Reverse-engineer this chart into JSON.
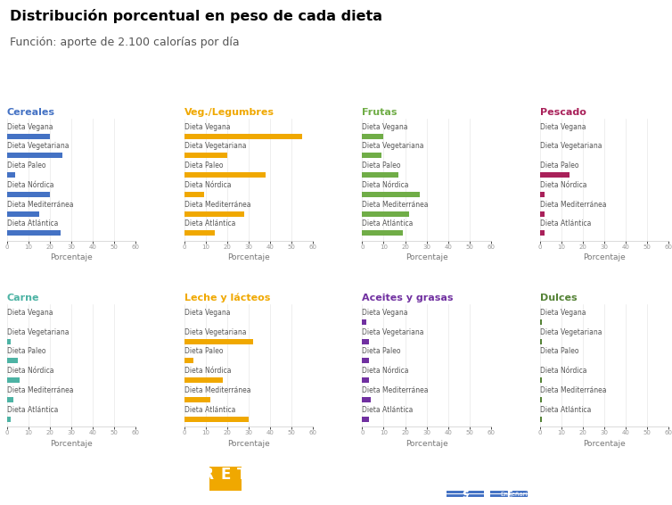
{
  "title": "Distribución porcentual en peso de cada dieta",
  "subtitle": "Función: aporte de 2.100 calorías por día",
  "diets": [
    "Dieta Vegana",
    "Dieta Vegetariana",
    "Dieta Paleo",
    "Dieta Nórdica",
    "Dieta Mediterránea",
    "Dieta Atlántica"
  ],
  "categories_top": [
    "Cereales",
    "Veg./Legumbres",
    "Frutas",
    "Pescado"
  ],
  "categories_bot": [
    "Carne",
    "Leche y lácteos",
    "Aceites y grasas",
    "Dulces"
  ],
  "title_colors": {
    "Cereales": "#4472c4",
    "Veg./Legumbres": "#f0a800",
    "Frutas": "#70ad47",
    "Pescado": "#a9215a",
    "Carne": "#4db3a4",
    "Leche y lácteos": "#f0a800",
    "Aceites y grasas": "#7030a0",
    "Dulces": "#548235"
  },
  "bar_colors": {
    "Cereales": "#4472c4",
    "Veg./Legumbres": "#f0a800",
    "Frutas": "#70ad47",
    "Pescado": "#a9215a",
    "Carne": "#4db3a4",
    "Leche y lácteos": "#f0a800",
    "Aceites y grasas": "#7030a0",
    "Dulces": "#548235"
  },
  "values": {
    "Cereales": [
      20,
      26,
      4,
      20,
      15,
      25
    ],
    "Veg./Legumbres": [
      55,
      20,
      38,
      9,
      28,
      14
    ],
    "Frutas": [
      10,
      9,
      17,
      27,
      22,
      19
    ],
    "Pescado": [
      0,
      0,
      14,
      2,
      2,
      2
    ],
    "Carne": [
      0,
      2,
      5,
      6,
      3,
      2
    ],
    "Leche y lácteos": [
      0,
      32,
      4,
      18,
      12,
      30
    ],
    "Aceites y grasas": [
      2,
      3,
      3,
      3,
      4,
      3
    ],
    "Dulces": [
      1,
      1,
      0,
      1,
      1,
      1
    ]
  },
  "xlim": 60,
  "xticks": [
    0,
    10,
    20,
    30,
    40,
    50,
    60
  ],
  "xtick_labels": [
    "0",
    "10",
    "20",
    "30",
    "40",
    "50",
    "60"
  ],
  "xlabel": "Porcentaje",
  "footer_color": "#3b6ea5",
  "label_text_color": "#555555",
  "axis_tick_color": "#999999"
}
